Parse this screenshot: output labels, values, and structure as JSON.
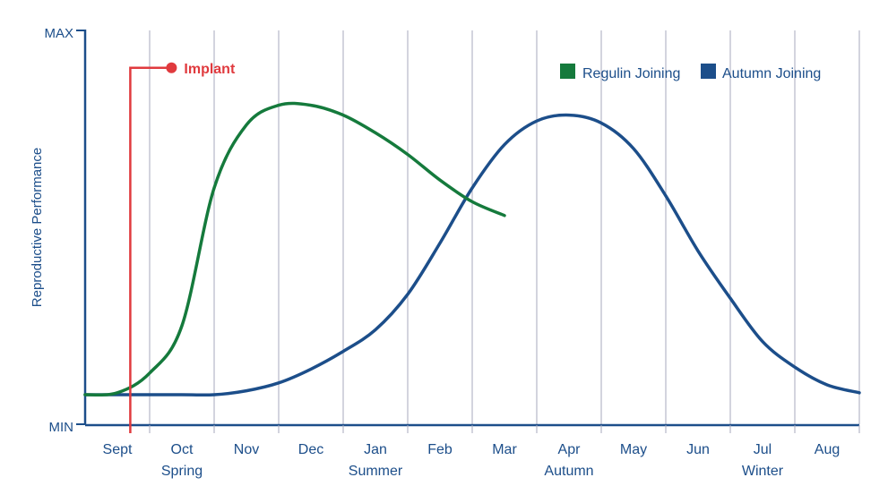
{
  "chart_data": {
    "type": "line",
    "ylabel": "Reproductive Performance",
    "ymax_label": "MAX",
    "ymin_label": "MIN",
    "ylim": [
      0,
      100
    ],
    "months": [
      "Sept",
      "Oct",
      "Nov",
      "Dec",
      "Jan",
      "Feb",
      "Mar",
      "Apr",
      "May",
      "Jun",
      "Jul",
      "Aug"
    ],
    "seasons": [
      {
        "label": "Spring",
        "center_month": 1
      },
      {
        "label": "Summer",
        "center_month": 4
      },
      {
        "label": "Autumn",
        "center_month": 7
      },
      {
        "label": "Winter",
        "center_month": 10
      }
    ],
    "series": [
      {
        "name": "Regulin Joining",
        "color": "#157a3c",
        "points": [
          [
            -0.5,
            7.5
          ],
          [
            0,
            8
          ],
          [
            0.5,
            13
          ],
          [
            1,
            25
          ],
          [
            1.5,
            60
          ],
          [
            2,
            76
          ],
          [
            2.5,
            81
          ],
          [
            3,
            81
          ],
          [
            3.5,
            78.5
          ],
          [
            4,
            74
          ],
          [
            4.5,
            68.5
          ],
          [
            5,
            62
          ],
          [
            5.5,
            56.5
          ],
          [
            6,
            53
          ]
        ]
      },
      {
        "name": "Autumn Joining",
        "color": "#1c4e8a",
        "points": [
          [
            -0.5,
            7.5
          ],
          [
            0,
            7.5
          ],
          [
            1,
            7.5
          ],
          [
            1.5,
            7.5
          ],
          [
            2,
            8.5
          ],
          [
            2.5,
            10.5
          ],
          [
            3,
            14
          ],
          [
            3.5,
            18.5
          ],
          [
            4,
            24
          ],
          [
            4.5,
            33
          ],
          [
            5,
            46
          ],
          [
            5.5,
            60
          ],
          [
            6,
            71
          ],
          [
            6.5,
            77
          ],
          [
            7,
            78.5
          ],
          [
            7.5,
            76.5
          ],
          [
            8,
            70
          ],
          [
            8.5,
            58
          ],
          [
            9,
            44
          ],
          [
            9.5,
            32
          ],
          [
            10,
            21
          ],
          [
            10.5,
            14.5
          ],
          [
            11,
            10
          ],
          [
            11.5,
            8
          ]
        ]
      }
    ],
    "annotation": {
      "label": "Implant",
      "color": "#e03a3e",
      "month_position": 0.2,
      "level": 90.5
    },
    "grid": true,
    "legend_position": "top-right"
  }
}
